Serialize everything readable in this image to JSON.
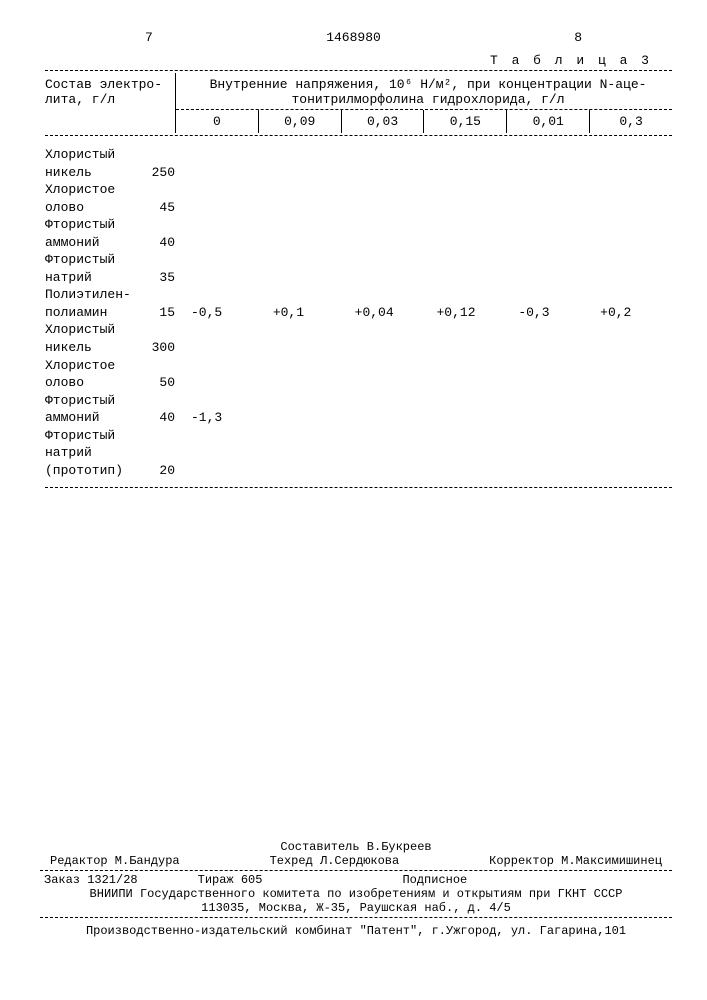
{
  "header": {
    "page_left": "7",
    "doc_number": "1468980",
    "page_right": "8"
  },
  "table": {
    "title": "Т а б л и ц а  3",
    "left_header_l1": "Состав электро-",
    "left_header_l2": "лита, г/л",
    "right_header_l1": "Внутренние напряжения, 10⁶ Н/м², при концентрации N-аце-",
    "right_header_l2": "тонитрилморфолина гидрохлорида, г/л",
    "concentrations": [
      "0",
      "0,09",
      "0,03",
      "0,15",
      "0,01",
      "0,3"
    ],
    "rows": [
      {
        "label_l1": "Хлористый",
        "label_l2": "никель",
        "amount": "250",
        "values": [
          "",
          "",
          "",
          "",
          "",
          ""
        ]
      },
      {
        "label_l1": "Хлористое",
        "label_l2": "олово",
        "amount": "45",
        "values": [
          "",
          "",
          "",
          "",
          "",
          ""
        ]
      },
      {
        "label_l1": "Фтористый",
        "label_l2": "аммоний",
        "amount": "40",
        "values": [
          "",
          "",
          "",
          "",
          "",
          ""
        ]
      },
      {
        "label_l1": "Фтористый",
        "label_l2": "натрий",
        "amount": "35",
        "values": [
          "",
          "",
          "",
          "",
          "",
          ""
        ]
      },
      {
        "label_l1": "Полиэтилен-",
        "label_l2": "полиамин",
        "amount": "15",
        "values": [
          "-0,5",
          "+0,1",
          "+0,04",
          "+0,12",
          "-0,3",
          "+0,2"
        ]
      },
      {
        "label_l1": "Хлористый",
        "label_l2": "никель",
        "amount": "300",
        "values": [
          "",
          "",
          "",
          "",
          "",
          ""
        ]
      },
      {
        "label_l1": "Хлористое",
        "label_l2": "олово",
        "amount": "50",
        "values": [
          "",
          "",
          "",
          "",
          "",
          ""
        ]
      },
      {
        "label_l1": "Фтористый",
        "label_l2": "аммоний",
        "amount": "40",
        "values": [
          "-1,3",
          "",
          "",
          "",
          "",
          ""
        ]
      },
      {
        "label_l1": "Фтористый",
        "label_l2": "натрий",
        "amount": "",
        "values": [
          "",
          "",
          "",
          "",
          "",
          ""
        ]
      },
      {
        "label_l1": "(прототип)",
        "label_l2": "",
        "amount": "20",
        "values": [
          "",
          "",
          "",
          "",
          "",
          ""
        ],
        "single": true
      }
    ]
  },
  "footer": {
    "compiler": "Составитель В.Букреев",
    "editor": "Редактор М.Бандура",
    "techred": "Техред Л.Сердюкова",
    "corrector": "Корректор М.Максимишинец",
    "order": "Заказ 1321/28",
    "circulation": "Тираж 605",
    "subscription": "Подписное",
    "org_l1": "ВНИИПИ Государственного комитета по изобретениям и открытиям при ГКНТ СССР",
    "org_l2": "113035, Москва, Ж-35, Раушская наб., д. 4/5",
    "colophon": "Производственно-издательский комбинат \"Патент\", г.Ужгород, ул. Гагарина,101"
  }
}
